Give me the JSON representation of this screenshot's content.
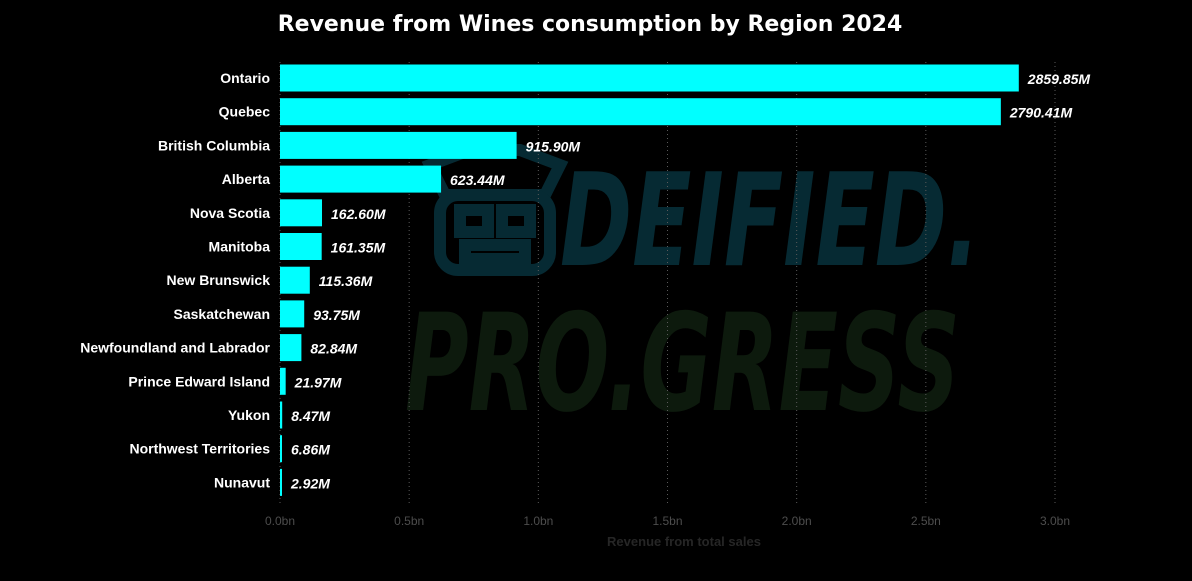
{
  "chart_data": {
    "type": "bar",
    "orientation": "horizontal",
    "title": "Revenue from Wines consumption by Region 2024",
    "xlabel": "Revenue from total sales",
    "ylabel": "",
    "xlim": [
      0,
      3.0
    ],
    "unit": "billions",
    "grid": true,
    "categories": [
      "Ontario",
      "Quebec",
      "British Columbia",
      "Alberta",
      "Nova Scotia",
      "Manitoba",
      "New Brunswick",
      "Saskatchewan",
      "Newfoundland and Labrador",
      "Prince Edward Island",
      "Yukon",
      "Northwest Territories",
      "Nunavut"
    ],
    "values": [
      2.85985,
      2.79041,
      0.9159,
      0.62344,
      0.1626,
      0.16135,
      0.11536,
      0.09375,
      0.08284,
      0.02197,
      0.00847,
      0.00686,
      0.00292
    ],
    "data_labels": [
      "2859.85M",
      "2790.41M",
      "915.90M",
      "623.44M",
      "162.60M",
      "161.35M",
      "115.36M",
      "93.75M",
      "82.84M",
      "21.97M",
      "8.47M",
      "6.86M",
      "2.92M"
    ],
    "x_ticks": [
      0,
      0.5,
      1.0,
      1.5,
      2.0,
      2.5,
      3.0
    ],
    "x_tick_labels": [
      "0.0bn",
      "0.5bn",
      "1.0bn",
      "1.5bn",
      "2.0bn",
      "2.5bn",
      "3.0bn"
    ]
  },
  "watermark": {
    "line1": "DEIFIED.",
    "line2": "PRO.GRESS",
    "icon": "tiki-mask-icon"
  },
  "colors": {
    "background": "#000000",
    "bar": "#00ffff",
    "gridline": "#5a5a5a",
    "tick_label": "#4d4d4d",
    "axis_title": "#262626",
    "watermark_line1": "#062a33",
    "watermark_line2": "#0d1a0d"
  }
}
